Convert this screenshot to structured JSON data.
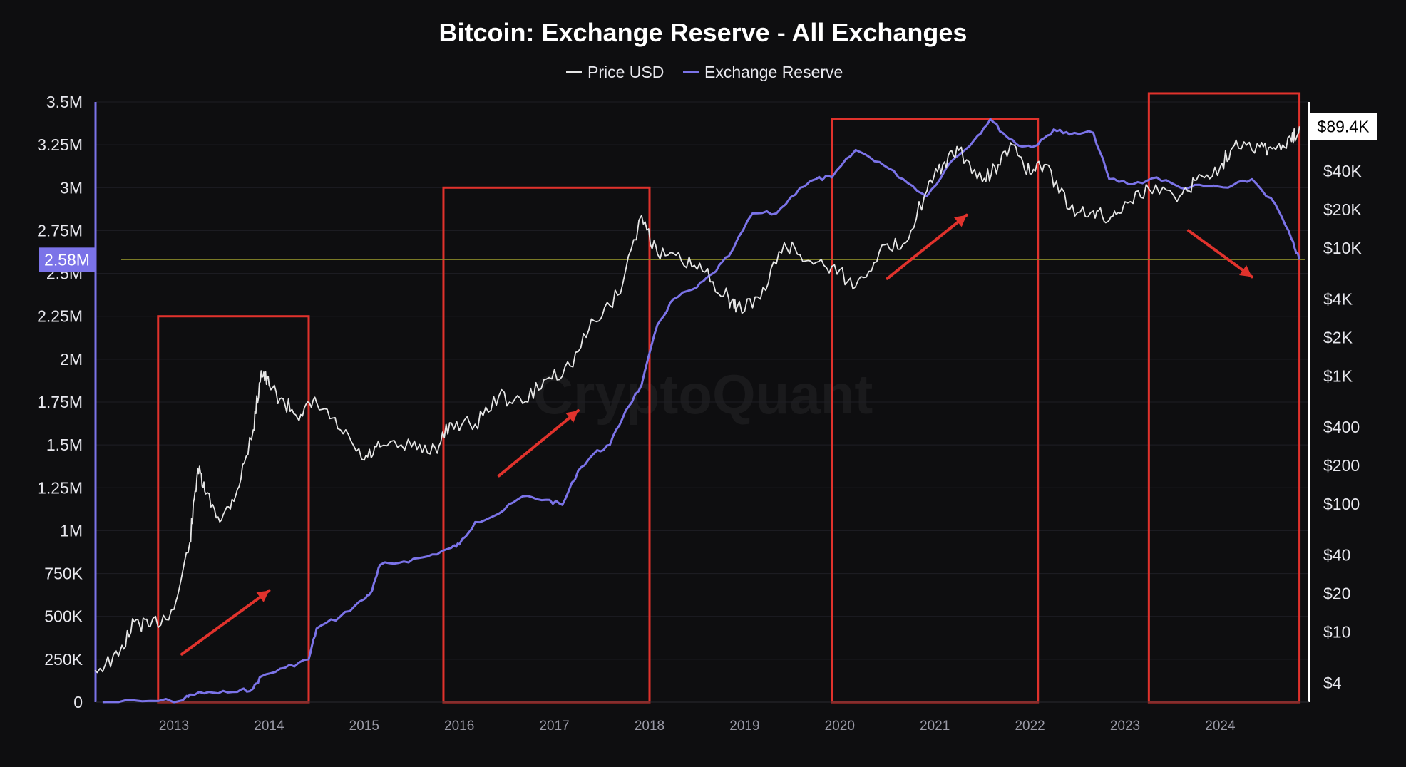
{
  "chart_data": {
    "type": "line",
    "title": "Bitcoin: Exchange Reserve - All Exchanges",
    "watermark": "CryptoQuant",
    "legend": {
      "placement": "top-center",
      "entries": [
        {
          "name": "Price USD",
          "color": "#e6e6e6"
        },
        {
          "name": "Exchange Reserve",
          "color": "#7b73e8"
        }
      ]
    },
    "x_ticks": [
      "2013",
      "2014",
      "2015",
      "2016",
      "2017",
      "2018",
      "2019",
      "2020",
      "2021",
      "2022",
      "2023",
      "2024"
    ],
    "x_range": [
      "2012-03",
      "2024-11"
    ],
    "left_axis": {
      "ticks": [
        "0",
        "250K",
        "500K",
        "750K",
        "1M",
        "1.25M",
        "1.5M",
        "1.75M",
        "2M",
        "2.25M",
        "2.5M",
        "2.75M",
        "3M",
        "3.25M",
        "3.5M"
      ],
      "tick_values": [
        0,
        250000,
        500000,
        750000,
        1000000,
        1250000,
        1500000,
        1750000,
        2000000,
        2250000,
        2500000,
        2750000,
        3000000,
        3250000,
        3500000
      ],
      "ylim": [
        0,
        3500000
      ],
      "current_label": "2.58M",
      "current_value": 2580000,
      "current_color": "#7b73e8"
    },
    "right_axis": {
      "scale": "log",
      "ticks": [
        "$4",
        "$10",
        "$20",
        "$40",
        "$100",
        "$200",
        "$400",
        "$1K",
        "$2K",
        "$4K",
        "$10K",
        "$20K",
        "$40K"
      ],
      "tick_values": [
        4,
        10,
        20,
        40,
        100,
        200,
        400,
        1000,
        2000,
        4000,
        10000,
        20000,
        40000
      ],
      "current_label": "$89.4K",
      "current_value": 89400
    },
    "series": [
      {
        "name": "Exchange Reserve",
        "color": "#7b73e8",
        "axis": "left",
        "points": [
          [
            "2012-04",
            0
          ],
          [
            "2012-09",
            5000
          ],
          [
            "2013-02",
            10000
          ],
          [
            "2013-03",
            45000
          ],
          [
            "2013-06",
            55000
          ],
          [
            "2013-09",
            60000
          ],
          [
            "2013-11",
            80000
          ],
          [
            "2013-12",
            150000
          ],
          [
            "2014-03",
            200000
          ],
          [
            "2014-06",
            250000
          ],
          [
            "2014-07",
            430000
          ],
          [
            "2014-10",
            500000
          ],
          [
            "2015-01",
            600000
          ],
          [
            "2015-02",
            650000
          ],
          [
            "2015-03",
            800000
          ],
          [
            "2015-06",
            820000
          ],
          [
            "2015-09",
            850000
          ],
          [
            "2015-12",
            900000
          ],
          [
            "2016-01",
            920000
          ],
          [
            "2016-03",
            1050000
          ],
          [
            "2016-06",
            1100000
          ],
          [
            "2016-09",
            1200000
          ],
          [
            "2016-12",
            1180000
          ],
          [
            "2017-02",
            1150000
          ],
          [
            "2017-04",
            1350000
          ],
          [
            "2017-06",
            1450000
          ],
          [
            "2017-08",
            1500000
          ],
          [
            "2017-10",
            1700000
          ],
          [
            "2017-12",
            1850000
          ],
          [
            "2018-02",
            2200000
          ],
          [
            "2018-04",
            2350000
          ],
          [
            "2018-07",
            2420000
          ],
          [
            "2018-09",
            2500000
          ],
          [
            "2018-11",
            2600000
          ],
          [
            "2019-02",
            2850000
          ],
          [
            "2019-05",
            2850000
          ],
          [
            "2019-08",
            3000000
          ],
          [
            "2019-10",
            3050000
          ],
          [
            "2019-12",
            3060000
          ],
          [
            "2020-03",
            3220000
          ],
          [
            "2020-06",
            3150000
          ],
          [
            "2020-09",
            3050000
          ],
          [
            "2020-12",
            2950000
          ],
          [
            "2021-03",
            3150000
          ],
          [
            "2021-06",
            3280000
          ],
          [
            "2021-08",
            3400000
          ],
          [
            "2021-10",
            3300000
          ],
          [
            "2021-12",
            3240000
          ],
          [
            "2022-02",
            3250000
          ],
          [
            "2022-04",
            3340000
          ],
          [
            "2022-06",
            3310000
          ],
          [
            "2022-09",
            3320000
          ],
          [
            "2022-11",
            3050000
          ],
          [
            "2023-02",
            3020000
          ],
          [
            "2023-05",
            3060000
          ],
          [
            "2023-08",
            3000000
          ],
          [
            "2023-11",
            3010000
          ],
          [
            "2024-02",
            3000000
          ],
          [
            "2024-05",
            3050000
          ],
          [
            "2024-08",
            2900000
          ],
          [
            "2024-10",
            2700000
          ],
          [
            "2024-11",
            2580000
          ]
        ]
      },
      {
        "name": "Price USD",
        "color": "#e6e6e6",
        "axis": "right",
        "points": [
          [
            "2012-03",
            5
          ],
          [
            "2012-06",
            6.5
          ],
          [
            "2012-08",
            12
          ],
          [
            "2012-10",
            11
          ],
          [
            "2013-01",
            15
          ],
          [
            "2013-03",
            50
          ],
          [
            "2013-04",
            190
          ],
          [
            "2013-05",
            120
          ],
          [
            "2013-07",
            75
          ],
          [
            "2013-09",
            130
          ],
          [
            "2013-11",
            380
          ],
          [
            "2013-12",
            1100
          ],
          [
            "2014-01",
            850
          ],
          [
            "2014-03",
            600
          ],
          [
            "2014-05",
            500
          ],
          [
            "2014-07",
            620
          ],
          [
            "2014-10",
            380
          ],
          [
            "2015-01",
            220
          ],
          [
            "2015-03",
            280
          ],
          [
            "2015-07",
            280
          ],
          [
            "2015-10",
            270
          ],
          [
            "2015-12",
            430
          ],
          [
            "2016-03",
            420
          ],
          [
            "2016-06",
            700
          ],
          [
            "2016-09",
            610
          ],
          [
            "2016-12",
            950
          ],
          [
            "2017-03",
            1200
          ],
          [
            "2017-06",
            2700
          ],
          [
            "2017-09",
            4300
          ],
          [
            "2017-12",
            18000
          ],
          [
            "2018-02",
            9000
          ],
          [
            "2018-05",
            8000
          ],
          [
            "2018-08",
            6500
          ],
          [
            "2018-11",
            4000
          ],
          [
            "2018-12",
            3400
          ],
          [
            "2019-03",
            4000
          ],
          [
            "2019-06",
            11000
          ],
          [
            "2019-09",
            8000
          ],
          [
            "2019-12",
            7200
          ],
          [
            "2020-03",
            5000
          ],
          [
            "2020-06",
            9400
          ],
          [
            "2020-09",
            10800
          ],
          [
            "2020-12",
            28000
          ],
          [
            "2021-02",
            45000
          ],
          [
            "2021-04",
            58000
          ],
          [
            "2021-07",
            33000
          ],
          [
            "2021-09",
            45000
          ],
          [
            "2021-11",
            64000
          ],
          [
            "2022-01",
            38000
          ],
          [
            "2022-03",
            45000
          ],
          [
            "2022-06",
            20000
          ],
          [
            "2022-09",
            19500
          ],
          [
            "2022-11",
            16500
          ],
          [
            "2023-01",
            23000
          ],
          [
            "2023-04",
            29000
          ],
          [
            "2023-08",
            26000
          ],
          [
            "2023-10",
            34000
          ],
          [
            "2024-01",
            43000
          ],
          [
            "2024-03",
            70000
          ],
          [
            "2024-06",
            62000
          ],
          [
            "2024-08",
            59000
          ],
          [
            "2024-10",
            68000
          ],
          [
            "2024-11",
            89400
          ]
        ]
      }
    ],
    "annotations": {
      "highlight_boxes": [
        {
          "from": "2012-11",
          "to": "2014-06",
          "top_value": 2250000
        },
        {
          "from": "2015-11",
          "to": "2018-01",
          "top_value": 3000000
        },
        {
          "from": "2019-12",
          "to": "2022-02",
          "top_value": 3400000
        },
        {
          "from": "2023-04",
          "to": "2024-11",
          "top_value": 3550000
        }
      ],
      "trend_arrows": [
        {
          "direction": "up",
          "from": [
            "2013-02",
            280000
          ],
          "to": [
            "2014-01",
            650000
          ]
        },
        {
          "direction": "up",
          "from": [
            "2016-06",
            1320000
          ],
          "to": [
            "2017-04",
            1700000
          ]
        },
        {
          "direction": "up",
          "from": [
            "2020-07",
            2470000
          ],
          "to": [
            "2021-05",
            2840000
          ]
        },
        {
          "direction": "down",
          "from": [
            "2023-09",
            2750000
          ],
          "to": [
            "2024-05",
            2480000
          ]
        }
      ],
      "box_color": "#e0322c",
      "arrow_color": "#e0322c",
      "guide_line_color": "#8a8a2a"
    },
    "grid": true
  }
}
